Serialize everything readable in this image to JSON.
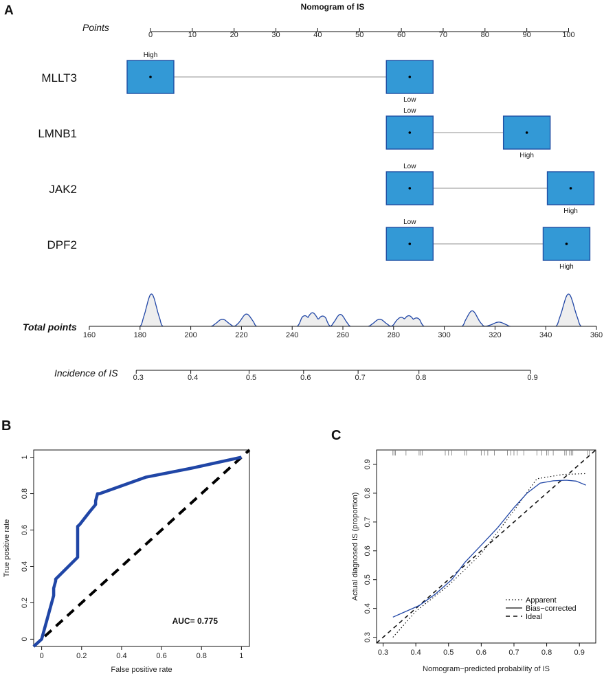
{
  "panel_labels": {
    "a": "A",
    "b": "B",
    "c": "C"
  },
  "colors": {
    "box_fill": "#3399d6",
    "box_stroke": "#1f4ea3",
    "curve": "#2046a6",
    "density_fill": "#eeeeee",
    "connector": "#b5b5b5",
    "ink": "#111111"
  },
  "chart_data": [
    {
      "type": "nomogram",
      "title": "Nomogram of  IS",
      "points_axis": {
        "label": "Points",
        "range": [
          0,
          100
        ],
        "ticks": [
          0,
          10,
          20,
          30,
          40,
          50,
          60,
          70,
          80,
          90,
          100
        ]
      },
      "predictors": [
        {
          "name": "MLLT3",
          "levels": [
            {
              "label": "High",
              "points": 0,
              "label_pos": "above"
            },
            {
              "label": "Low",
              "points": 62,
              "label_pos": "below"
            }
          ]
        },
        {
          "name": "LMNB1",
          "levels": [
            {
              "label": "Low",
              "points": 62,
              "label_pos": "above"
            },
            {
              "label": "High",
              "points": 90,
              "label_pos": "below"
            }
          ]
        },
        {
          "name": "JAK2",
          "levels": [
            {
              "label": "Low",
              "points": 62,
              "label_pos": "above"
            },
            {
              "label": "High",
              "points": 100.5,
              "label_pos": "below"
            }
          ]
        },
        {
          "name": "DPF2",
          "levels": [
            {
              "label": "Low",
              "points": 62,
              "label_pos": "above"
            },
            {
              "label": "High",
              "points": 99.5,
              "label_pos": "below"
            }
          ]
        }
      ],
      "total_points_axis": {
        "label": "Total points",
        "range": [
          160,
          360
        ],
        "ticks": [
          160,
          180,
          200,
          220,
          240,
          260,
          280,
          300,
          320,
          340,
          360
        ]
      },
      "total_points_density": [
        {
          "start": 180,
          "end": 189,
          "peaks": [
            [
              184.5,
              1.0
            ]
          ]
        },
        {
          "start": 208,
          "end": 217,
          "peaks": [
            [
              212.5,
              0.22
            ]
          ]
        },
        {
          "start": 217,
          "end": 226,
          "peaks": [
            [
              222,
              0.38
            ]
          ]
        },
        {
          "start": 242,
          "end": 255,
          "peaks": [
            [
              245,
              0.33
            ],
            [
              248,
              0.42
            ],
            [
              252,
              0.32
            ]
          ]
        },
        {
          "start": 255,
          "end": 263,
          "peaks": [
            [
              259,
              0.37
            ]
          ]
        },
        {
          "start": 270,
          "end": 279,
          "peaks": [
            [
              274.5,
              0.22
            ]
          ]
        },
        {
          "start": 279,
          "end": 292,
          "peaks": [
            [
              283,
              0.28
            ],
            [
              286,
              0.33
            ],
            [
              289,
              0.26
            ]
          ]
        },
        {
          "start": 307,
          "end": 316,
          "peaks": [
            [
              311,
              0.48
            ]
          ]
        },
        {
          "start": 316,
          "end": 326,
          "peaks": [
            [
              321.5,
              0.13
            ]
          ]
        },
        {
          "start": 344,
          "end": 354,
          "peaks": [
            [
              349,
              1.0
            ]
          ]
        }
      ],
      "incidence_axis": {
        "label": "Incidence of IS",
        "ticks": [
          {
            "label": "0.3",
            "total_points": 178.5
          },
          {
            "label": "0.4",
            "total_points": 200
          },
          {
            "label": "0.5",
            "total_points": 223
          },
          {
            "label": "0.6",
            "total_points": 244.5
          },
          {
            "label": "0.7",
            "total_points": 266
          },
          {
            "label": "0.8",
            "total_points": 290
          },
          {
            "label": "0.9",
            "total_points": 334
          }
        ]
      }
    },
    {
      "type": "line",
      "title": "",
      "xlabel": "False positive rate",
      "ylabel": "True positive rate",
      "xlim": [
        -0.04,
        1.04
      ],
      "ylim": [
        -0.04,
        1.04
      ],
      "xticks": [
        0.0,
        0.2,
        0.4,
        0.6,
        0.8,
        1.0
      ],
      "yticks": [
        0.0,
        0.2,
        0.4,
        0.6,
        0.8,
        1.0
      ],
      "series": [
        {
          "name": "ROC",
          "x": [
            -0.04,
            0.0,
            0.06,
            0.06,
            0.07,
            0.07,
            0.18,
            0.18,
            0.19,
            0.24,
            0.27,
            0.27,
            0.28,
            0.29,
            0.52,
            0.75,
            1.0
          ],
          "y": [
            -0.04,
            0.0,
            0.24,
            0.28,
            0.32,
            0.33,
            0.45,
            0.62,
            0.63,
            0.7,
            0.74,
            0.76,
            0.8,
            0.8,
            0.89,
            0.94,
            1.0
          ]
        },
        {
          "name": "Diagonal",
          "x": [
            -0.04,
            1.04
          ],
          "y": [
            -0.04,
            1.04
          ]
        }
      ],
      "annotation": "AUC= 0.775"
    },
    {
      "type": "line",
      "title": "",
      "xlabel": "Nomogram−predicted probability of IS",
      "ylabel": "Actual diagnosed IS (proportion)",
      "xlim": [
        0.28,
        0.95
      ],
      "ylim": [
        0.28,
        0.95
      ],
      "xticks": [
        0.3,
        0.4,
        0.5,
        0.6,
        0.7,
        0.8,
        0.9
      ],
      "yticks": [
        0.3,
        0.4,
        0.5,
        0.6,
        0.7,
        0.8,
        0.9
      ],
      "series": [
        {
          "name": "Apparent",
          "x": [
            0.33,
            0.4,
            0.5,
            0.6,
            0.7,
            0.77,
            0.85,
            0.92
          ],
          "y": [
            0.3,
            0.39,
            0.48,
            0.59,
            0.74,
            0.85,
            0.865,
            0.868
          ]
        },
        {
          "name": "Bias−corrected",
          "x": [
            0.33,
            0.36,
            0.41,
            0.46,
            0.51,
            0.55,
            0.6,
            0.65,
            0.7,
            0.74,
            0.78,
            0.82,
            0.86,
            0.89,
            0.92
          ],
          "y": [
            0.37,
            0.385,
            0.41,
            0.45,
            0.5,
            0.56,
            0.62,
            0.68,
            0.75,
            0.8,
            0.835,
            0.843,
            0.845,
            0.842,
            0.828
          ]
        },
        {
          "name": "Ideal",
          "x": [
            0.28,
            0.95
          ],
          "y": [
            0.28,
            0.95
          ]
        }
      ],
      "rug_x": [
        0.33,
        0.334,
        0.338,
        0.37,
        0.41,
        0.415,
        0.42,
        0.49,
        0.5,
        0.51,
        0.55,
        0.555,
        0.6,
        0.61,
        0.62,
        0.64,
        0.68,
        0.69,
        0.7,
        0.71,
        0.73,
        0.77,
        0.785,
        0.8,
        0.805,
        0.82,
        0.855,
        0.86,
        0.87,
        0.875,
        0.88,
        0.925,
        0.93
      ],
      "legend": {
        "placement": "bottom-right",
        "entries": [
          {
            "label": "Apparent",
            "style": "dotted"
          },
          {
            "label": "Bias−corrected",
            "style": "solid"
          },
          {
            "label": "Ideal",
            "style": "dashed"
          }
        ]
      }
    }
  ]
}
